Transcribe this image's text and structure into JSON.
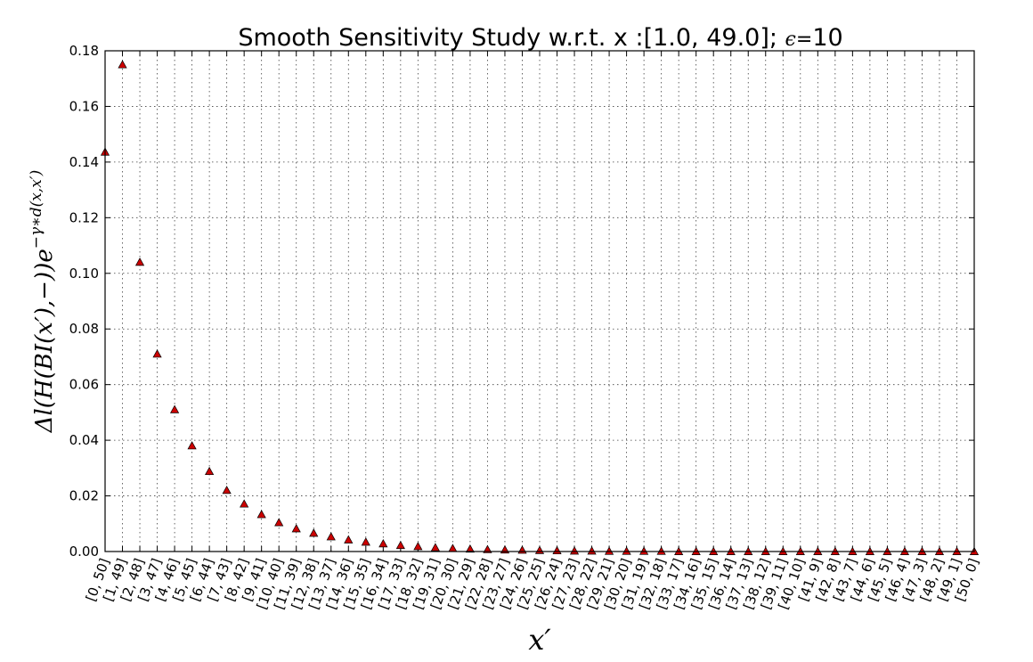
{
  "chart_data": {
    "type": "scatter",
    "title": "Smooth Sensitivity Study w.r.t. x :[1.0, 49.0]; ",
    "title_epsilon": "ϵ",
    "title_eq": "=",
    "title_value": "10",
    "xlabel": "x′",
    "ylabel_main": "Δl(H(BI(x′),−))e",
    "ylabel_exp": "−γ∗d(x,x′)",
    "ylim": [
      0,
      0.18
    ],
    "yticks": [
      "0.00",
      "0.02",
      "0.04",
      "0.06",
      "0.08",
      "0.10",
      "0.12",
      "0.14",
      "0.16",
      "0.18"
    ],
    "grid": true,
    "marker": "triangle",
    "marker_color": "#cc0000",
    "categories": [
      "[0, 50]",
      "[1, 49]",
      "[2, 48]",
      "[3, 47]",
      "[4, 46]",
      "[5, 45]",
      "[6, 44]",
      "[7, 43]",
      "[8, 42]",
      "[9, 41]",
      "[10, 40]",
      "[11, 39]",
      "[12, 38]",
      "[13, 37]",
      "[14, 36]",
      "[15, 35]",
      "[16, 34]",
      "[17, 33]",
      "[18, 32]",
      "[19, 31]",
      "[20, 30]",
      "[21, 29]",
      "[22, 28]",
      "[23, 27]",
      "[24, 26]",
      "[25, 25]",
      "[26, 24]",
      "[27, 23]",
      "[28, 22]",
      "[29, 21]",
      "[30, 20]",
      "[31, 19]",
      "[32, 18]",
      "[33, 17]",
      "[34, 16]",
      "[35, 15]",
      "[36, 14]",
      "[37, 13]",
      "[38, 12]",
      "[39, 11]",
      "[40, 10]",
      "[41, 9]",
      "[42, 8]",
      "[43, 7]",
      "[44, 6]",
      "[45, 5]",
      "[46, 4]",
      "[47, 3]",
      "[48, 2]",
      "[49, 1]",
      "[50, 0]"
    ],
    "values": [
      0.1436,
      0.175,
      0.104,
      0.071,
      0.051,
      0.038,
      0.0288,
      0.022,
      0.0171,
      0.0133,
      0.0104,
      0.0082,
      0.0066,
      0.0053,
      0.0042,
      0.0034,
      0.0028,
      0.0022,
      0.0018,
      0.0014,
      0.0011,
      0.0009,
      0.0007,
      0.0006,
      0.0005,
      0.0004,
      0.0003,
      0.0002,
      0.0002,
      0.0001,
      0.0001,
      0.0001,
      0.0001,
      0.0,
      0.0,
      0.0,
      0.0,
      0.0,
      0.0,
      0.0,
      0.0,
      0.0,
      0.0,
      0.0,
      0.0,
      0.0,
      0.0,
      0.0,
      0.0,
      0.0,
      0.0
    ]
  }
}
